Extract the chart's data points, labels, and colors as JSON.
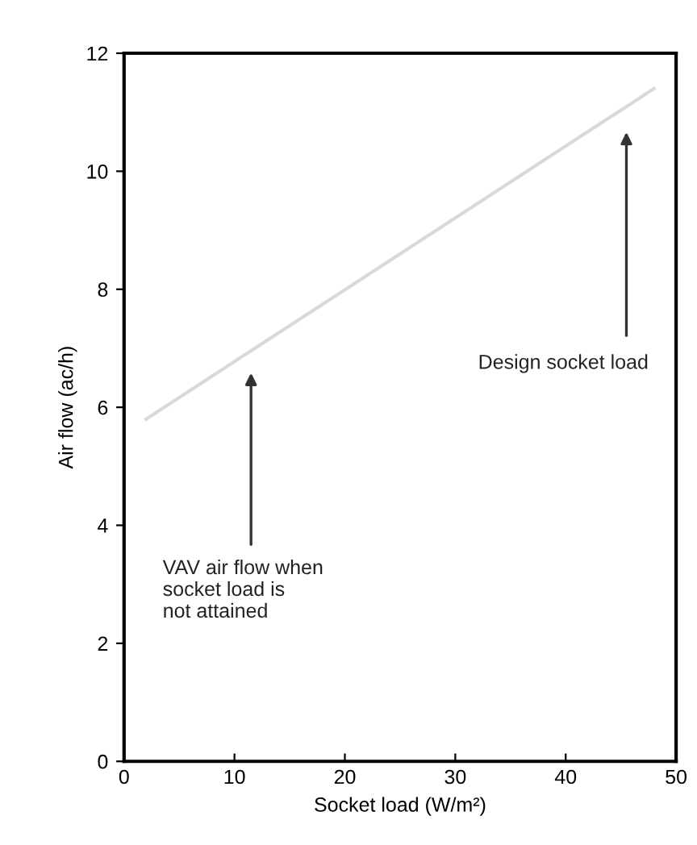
{
  "chart_data": {
    "type": "line",
    "xlabel": "Socket load (W/m²)",
    "ylabel": "Air flow (ac/h)",
    "x": [
      2,
      48
    ],
    "series": [
      {
        "color": "#d9d9d9",
        "values": [
          5.8,
          11.4
        ]
      }
    ],
    "xlim": [
      0,
      50
    ],
    "xticks": [
      0,
      10,
      20,
      30,
      40,
      50
    ],
    "ylim": [
      0,
      12
    ],
    "yticks": [
      0,
      2,
      4,
      6,
      8,
      10,
      12
    ],
    "grid": false,
    "annotations": [
      "VAV air flow when\nsocket load is\nnot attained",
      "Design socket load"
    ]
  }
}
